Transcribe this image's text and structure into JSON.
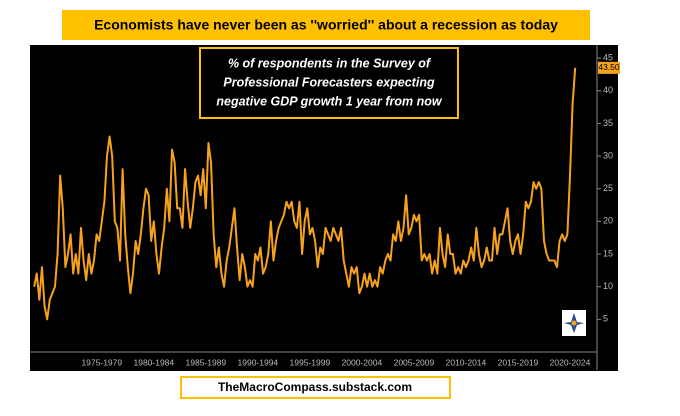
{
  "chart_data": {
    "type": "line",
    "title": "Economists have never been as ''worried'' about a recession as today",
    "subtitle": [
      "% of respondents in the Survey of",
      "Professional Forecasters expecting",
      "negative GDP growth 1 year from now"
    ],
    "source": "TheMacroCompass.substack.com",
    "color": "#f7a21b",
    "x": [
      1971,
      1971.25,
      1971.5,
      1971.75,
      1972,
      1972.25,
      1972.5,
      1972.75,
      1973,
      1973.25,
      1973.5,
      1973.75,
      1974,
      1974.25,
      1974.5,
      1974.75,
      1975,
      1975.25,
      1975.5,
      1975.75,
      1976,
      1976.25,
      1976.5,
      1976.75,
      1977,
      1977.25,
      1977.5,
      1977.75,
      1978,
      1978.25,
      1978.5,
      1978.75,
      1979,
      1979.25,
      1979.5,
      1979.75,
      1980,
      1980.25,
      1980.5,
      1980.75,
      1981,
      1981.25,
      1981.5,
      1981.75,
      1982,
      1982.25,
      1982.5,
      1982.75,
      1983,
      1983.25,
      1983.5,
      1983.75,
      1984,
      1984.25,
      1984.5,
      1984.75,
      1985,
      1985.25,
      1985.5,
      1985.75,
      1986,
      1986.25,
      1986.5,
      1986.75,
      1987,
      1987.25,
      1987.5,
      1987.75,
      1988,
      1988.25,
      1988.5,
      1988.75,
      1989,
      1989.25,
      1989.5,
      1989.75,
      1990,
      1990.25,
      1990.5,
      1990.75,
      1991,
      1991.25,
      1991.5,
      1991.75,
      1992,
      1992.25,
      1992.5,
      1992.75,
      1993,
      1993.25,
      1993.5,
      1993.75,
      1994,
      1994.25,
      1994.5,
      1994.75,
      1995,
      1995.25,
      1995.5,
      1995.75,
      1996,
      1996.25,
      1996.5,
      1996.75,
      1997,
      1997.25,
      1997.5,
      1997.75,
      1998,
      1998.25,
      1998.5,
      1998.75,
      1999,
      1999.25,
      1999.5,
      1999.75,
      2000,
      2000.25,
      2000.5,
      2000.75,
      2001,
      2001.25,
      2001.5,
      2001.75,
      2002,
      2002.25,
      2002.5,
      2002.75,
      2003,
      2003.25,
      2003.5,
      2003.75,
      2004,
      2004.25,
      2004.5,
      2004.75,
      2005,
      2005.25,
      2005.5,
      2005.75,
      2006,
      2006.25,
      2006.5,
      2006.75,
      2007,
      2007.25,
      2007.5,
      2007.75,
      2008,
      2008.25,
      2008.5,
      2008.75,
      2009,
      2009.25,
      2009.5,
      2009.75,
      2010,
      2010.25,
      2010.5,
      2010.75,
      2011,
      2011.25,
      2011.5,
      2011.75,
      2012,
      2012.25,
      2012.5,
      2012.75,
      2013,
      2013.25,
      2013.5,
      2013.75,
      2014,
      2014.25,
      2014.5,
      2014.75,
      2015,
      2015.25,
      2015.5,
      2015.75,
      2016,
      2016.25,
      2016.5,
      2016.75,
      2017,
      2017.25,
      2017.5,
      2017.75,
      2018,
      2018.25,
      2018.5,
      2018.75,
      2019,
      2019.25,
      2019.5,
      2019.75,
      2020,
      2020.25,
      2020.5,
      2020.75,
      2021,
      2021.25,
      2021.5,
      2021.75,
      2022,
      2022.25,
      2022.5,
      2022.75,
      2023
    ],
    "values": [
      10,
      12,
      8,
      13,
      7,
      5,
      8,
      9,
      10,
      15,
      27,
      22,
      13,
      15,
      18,
      12,
      15,
      12,
      19,
      14,
      11,
      15,
      12,
      14,
      18,
      17,
      20,
      23,
      30,
      33,
      30,
      20,
      19,
      14,
      28,
      18,
      13,
      9,
      12,
      17,
      15,
      18,
      22,
      25,
      24,
      17,
      20,
      15,
      12,
      16,
      19,
      25,
      20,
      31,
      29,
      22,
      22,
      19,
      28,
      23,
      19,
      22,
      26,
      27,
      24,
      28,
      22,
      32,
      29,
      18,
      13,
      16,
      12,
      10,
      14,
      16,
      19,
      22,
      16,
      11,
      15,
      13,
      10,
      11,
      10,
      15,
      14,
      16,
      12,
      13,
      15,
      20,
      14,
      17,
      19,
      20,
      21,
      23,
      22,
      23,
      20,
      19,
      23,
      15,
      20,
      22,
      18,
      19,
      17,
      13,
      16,
      15,
      19,
      18,
      17,
      19,
      18,
      17,
      19,
      14,
      12,
      10,
      13,
      12,
      13,
      9,
      10,
      12,
      10,
      12,
      10,
      11,
      10,
      13,
      12,
      14,
      15,
      14,
      18,
      17,
      20,
      17,
      19,
      24,
      18,
      19,
      21,
      20,
      21,
      14,
      15,
      14,
      15,
      12,
      14,
      12,
      19,
      15,
      13,
      18,
      15,
      15,
      12,
      13,
      12,
      14,
      13,
      14,
      16,
      14,
      19,
      15,
      13,
      14,
      16,
      14,
      14,
      19,
      15,
      18,
      18,
      20,
      22,
      17,
      15,
      17,
      18,
      15,
      18,
      23,
      22,
      23,
      26,
      25,
      26,
      25,
      17,
      15,
      14,
      14,
      14,
      13,
      17,
      18,
      17,
      18,
      27,
      38,
      43.5
    ],
    "last_value": {
      "value": 43.5,
      "label": "43.50"
    },
    "xlim": [
      1970.6,
      2025
    ],
    "xticks": [
      {
        "value": 1977.5,
        "label": "1975-1979"
      },
      {
        "value": 1982.5,
        "label": "1980-1984"
      },
      {
        "value": 1987.5,
        "label": "1985-1989"
      },
      {
        "value": 1992.5,
        "label": "1990-1994"
      },
      {
        "value": 1997.5,
        "label": "1995-1999"
      },
      {
        "value": 2002.5,
        "label": "2000-2004"
      },
      {
        "value": 2007.5,
        "label": "2005-2009"
      },
      {
        "value": 2012.5,
        "label": "2010-2014"
      },
      {
        "value": 2017.5,
        "label": "2015-2019"
      },
      {
        "value": 2022.5,
        "label": "2020-2024"
      }
    ],
    "ylim": [
      0,
      47
    ],
    "yticks": [
      5,
      10,
      15,
      20,
      25,
      30,
      35,
      40,
      45
    ],
    "y_axis_side": "right",
    "grid": false
  }
}
